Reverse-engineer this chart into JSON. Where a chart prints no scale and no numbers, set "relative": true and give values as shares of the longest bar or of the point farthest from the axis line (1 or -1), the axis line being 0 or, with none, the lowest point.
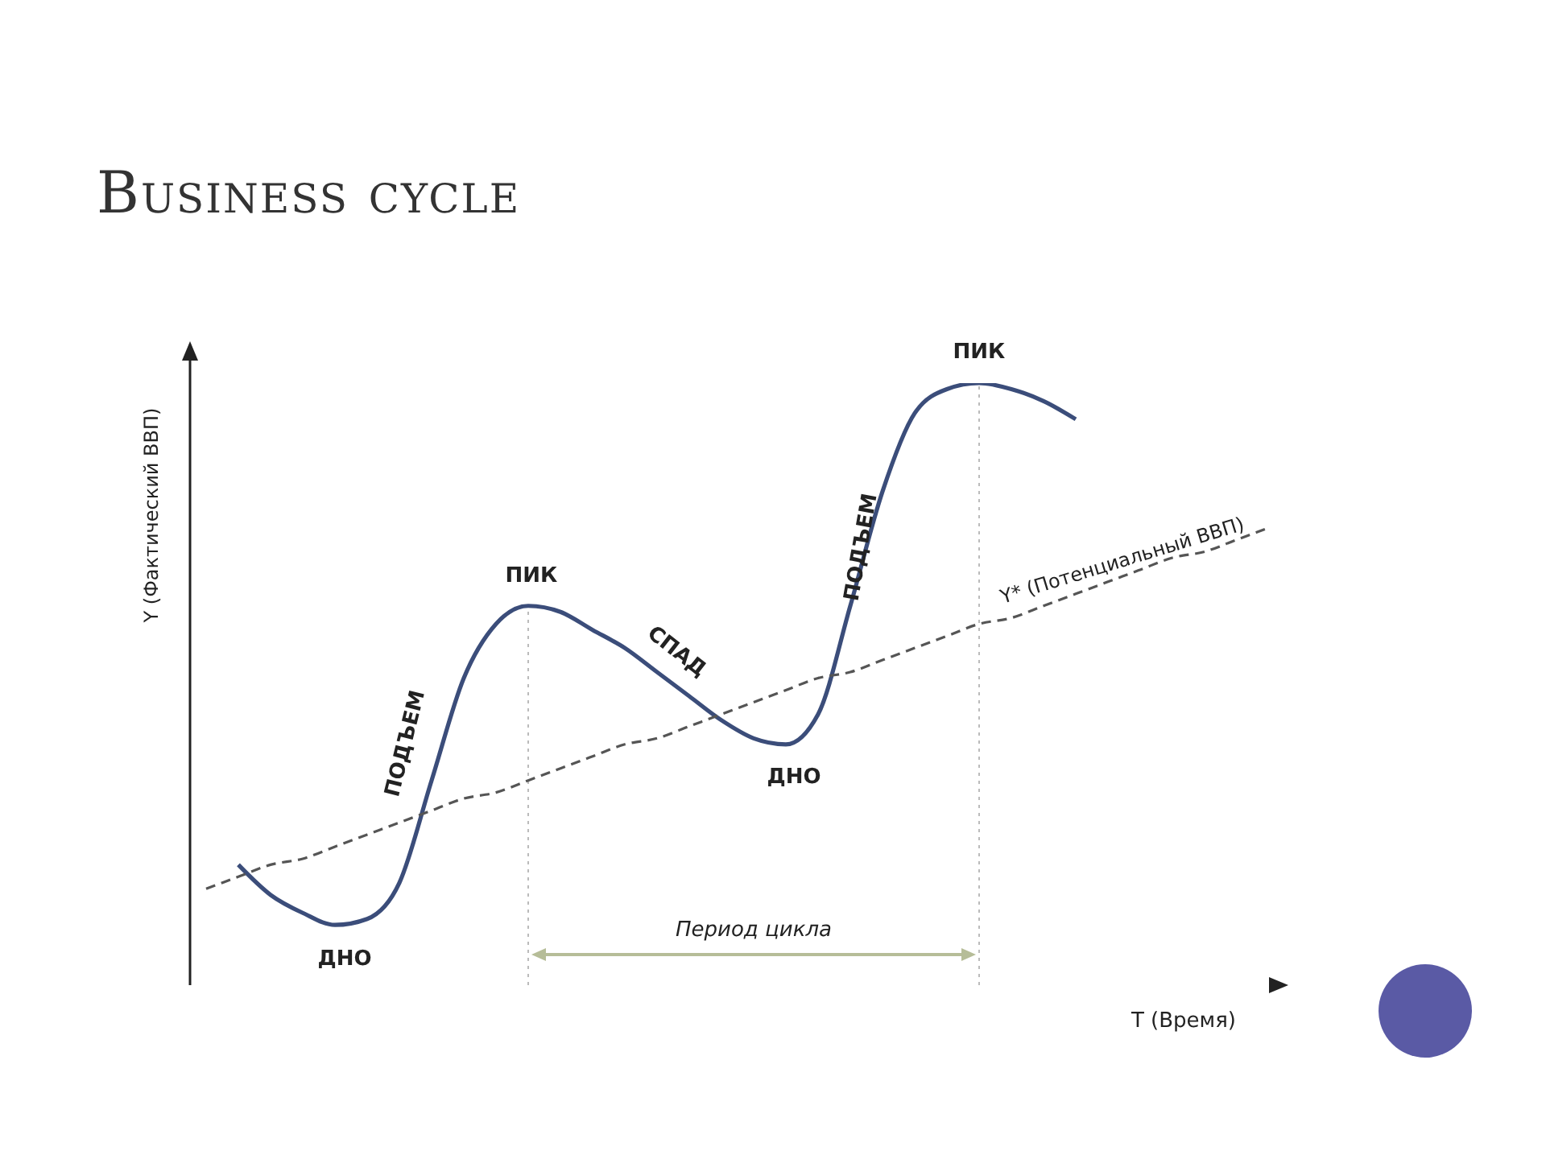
{
  "chart_data": {
    "type": "line",
    "title": "Business cycle",
    "xlabel": "T (Время)",
    "ylabel": "Y (Фактический ВВП)",
    "relative": true,
    "categories": [
      null,
      null,
      null,
      null,
      null,
      null,
      null,
      null,
      null,
      null,
      null,
      null,
      null,
      null,
      null,
      null,
      null,
      null,
      null,
      null,
      null,
      null,
      null,
      null,
      null,
      null,
      null,
      null,
      null,
      null,
      null,
      null,
      null,
      null
    ],
    "series": [
      {
        "color": "#3b4d7a",
        "line_style": "solid",
        "values": [
          null,
          0.2,
          0.15,
          0.12,
          0.1,
          0.11,
          0.17,
          0.34,
          0.51,
          0.6,
          0.63,
          0.62,
          0.59,
          0.56,
          0.52,
          0.48,
          0.44,
          0.41,
          0.4,
          0.45,
          0.63,
          0.82,
          0.95,
          0.99,
          1.0,
          0.99,
          0.97,
          0.94,
          null,
          null,
          null,
          null,
          null,
          null
        ]
      },
      {
        "name": "Y* (Потенциальный ВВП)",
        "color": "#555555",
        "line_style": "dashed",
        "values": [
          0.16,
          0.18,
          0.2,
          0.21,
          0.23,
          0.25,
          0.27,
          0.29,
          0.31,
          0.32,
          0.34,
          0.36,
          0.38,
          0.4,
          0.41,
          0.43,
          0.45,
          0.47,
          0.49,
          0.51,
          0.52,
          0.54,
          0.56,
          0.58,
          0.6,
          0.61,
          0.63,
          0.65,
          0.67,
          0.69,
          0.71,
          0.72,
          0.74,
          0.76
        ]
      }
    ],
    "annotations": [
      "ПИК",
      "ПИК",
      "СПАД",
      "ДНО",
      "ДНО",
      "ПОДЪЕМ",
      "ПОДЪЕМ",
      "Период цикла"
    ],
    "marker": "none",
    "grid": false,
    "legend": false
  }
}
